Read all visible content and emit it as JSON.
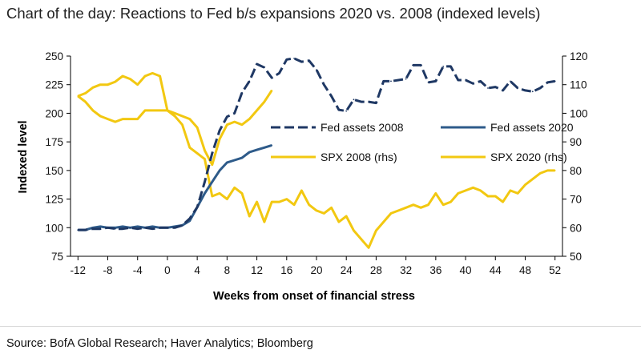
{
  "header": {
    "title": "Chart of the day: Reactions to Fed b/s expansions 2020 vs. 2008 (indexed levels)"
  },
  "footer": {
    "source": "Source: BofA Global Research; Haver Analytics; Bloomberg"
  },
  "colors": {
    "navy": "#1f3864",
    "steel": "#2e5b8a",
    "gold": "#f2c811",
    "gold_dark": "#d9b300",
    "axis": "#000000"
  },
  "chart_data": {
    "type": "line",
    "title": "Chart of the day: Reactions to Fed b/s expansions 2020 vs. 2008 (indexed levels)",
    "xlabel": "Weeks from onset of financial stress",
    "ylabel": "Indexed level",
    "y2label": "",
    "xlim": [
      -13,
      53
    ],
    "ylim": [
      75,
      250
    ],
    "y2lim": [
      50,
      120
    ],
    "x_ticks": [
      "-12",
      "-8",
      "-4",
      "0",
      "4",
      "8",
      "12",
      "16",
      "20",
      "24",
      "28",
      "32",
      "36",
      "40",
      "44",
      "48",
      "52"
    ],
    "y_ticks": [
      "75",
      "100",
      "125",
      "150",
      "175",
      "200",
      "225",
      "250"
    ],
    "y2_ticks": [
      "50",
      "60",
      "70",
      "80",
      "90",
      "100",
      "110",
      "120"
    ],
    "legend": [
      {
        "key": "fed2008",
        "label": "Fed assets 2008"
      },
      {
        "key": "fed2020",
        "label": "Fed assets 2020"
      },
      {
        "key": "spx2008",
        "label": "SPX 2008 (rhs)"
      },
      {
        "key": "spx2020",
        "label": "SPX 2020 (rhs)"
      }
    ],
    "series": [
      {
        "key": "fed2008",
        "name": "Fed assets 2008",
        "axis": "left",
        "style": "dashed",
        "color": "#1f3864",
        "x": [
          -12,
          -11,
          -10,
          -9,
          -8,
          -7,
          -6,
          -5,
          -4,
          -3,
          -2,
          -1,
          0,
          1,
          2,
          3,
          4,
          5,
          6,
          7,
          8,
          9,
          10,
          11,
          12,
          13,
          14,
          15,
          16,
          17,
          18,
          19,
          20,
          21,
          22,
          23,
          24,
          25,
          26,
          27,
          28,
          29,
          30,
          31,
          32,
          33,
          34,
          35,
          36,
          37,
          38,
          39,
          40,
          41,
          42,
          43,
          44,
          45,
          46,
          47,
          48,
          49,
          50,
          51,
          52
        ],
        "values": [
          98,
          98,
          99,
          99,
          100,
          99,
          99,
          100,
          99,
          100,
          99,
          100,
          100,
          100,
          102,
          108,
          118,
          140,
          165,
          185,
          197,
          200,
          218,
          228,
          243,
          240,
          231,
          235,
          247,
          248,
          245,
          246,
          238,
          225,
          215,
          203,
          202,
          212,
          210,
          210,
          209,
          228,
          228,
          229,
          230,
          242,
          242,
          227,
          228,
          241,
          241,
          229,
          229,
          226,
          228,
          222,
          223,
          220,
          228,
          222,
          220,
          219,
          222,
          227,
          228
        ]
      },
      {
        "key": "fed2020",
        "name": "Fed assets 2020",
        "axis": "left",
        "style": "solid",
        "color": "#2e5b8a",
        "x": [
          -12,
          -11,
          -10,
          -9,
          -8,
          -7,
          -6,
          -5,
          -4,
          -3,
          -2,
          -1,
          0,
          1,
          2,
          3,
          4,
          5,
          6,
          7,
          8,
          9,
          10,
          11,
          12,
          13,
          14
        ],
        "values": [
          98,
          98,
          100,
          101,
          100,
          100,
          101,
          100,
          101,
          100,
          101,
          100,
          100,
          101,
          102,
          106,
          118,
          130,
          140,
          150,
          157,
          159,
          161,
          166,
          168,
          170,
          172
        ]
      },
      {
        "key": "spx2008",
        "name": "SPX 2008 (rhs)",
        "axis": "right",
        "style": "solid",
        "color": "#f2c811",
        "x": [
          -12,
          -11,
          -10,
          -9,
          -8,
          -7,
          -6,
          -5,
          -4,
          -3,
          -2,
          -1,
          0,
          1,
          2,
          3,
          4,
          5,
          6,
          7,
          8,
          9,
          10,
          11,
          12,
          13,
          14,
          15,
          16,
          17,
          18,
          19,
          20,
          21,
          22,
          23,
          24,
          25,
          26,
          27,
          28,
          29,
          30,
          31,
          32,
          33,
          34,
          35,
          36,
          37,
          38,
          39,
          40,
          41,
          42,
          43,
          44,
          45,
          46,
          47,
          48,
          49,
          50,
          51,
          52
        ],
        "values": [
          106,
          107,
          109,
          110,
          110,
          111,
          113,
          112,
          110,
          113,
          114,
          113,
          101,
          99,
          96,
          88,
          86,
          84,
          71,
          72,
          70,
          74,
          72,
          64,
          69,
          62,
          69,
          69,
          70,
          68,
          73,
          68,
          66,
          65,
          67,
          62,
          64,
          59,
          56,
          53,
          59,
          62,
          65,
          66,
          67,
          68,
          67,
          68,
          72,
          68,
          69,
          72,
          73,
          74,
          73,
          71,
          71,
          69,
          73,
          72,
          75,
          77,
          79,
          80,
          80
        ]
      },
      {
        "key": "spx2020",
        "name": "SPX 2020 (rhs)",
        "axis": "right",
        "style": "solid",
        "color": "#f2c811",
        "x": [
          -12,
          -11,
          -10,
          -9,
          -8,
          -7,
          -6,
          -5,
          -4,
          -3,
          -2,
          -1,
          0,
          1,
          2,
          3,
          4,
          5,
          6,
          7,
          8,
          9,
          10,
          11,
          12,
          13,
          14
        ],
        "values": [
          106,
          104,
          101,
          99,
          98,
          97,
          98,
          98,
          98,
          101,
          101,
          101,
          101,
          100,
          99,
          98,
          95,
          87,
          82,
          91,
          96,
          97,
          96,
          98,
          101,
          104,
          108
        ]
      }
    ]
  }
}
